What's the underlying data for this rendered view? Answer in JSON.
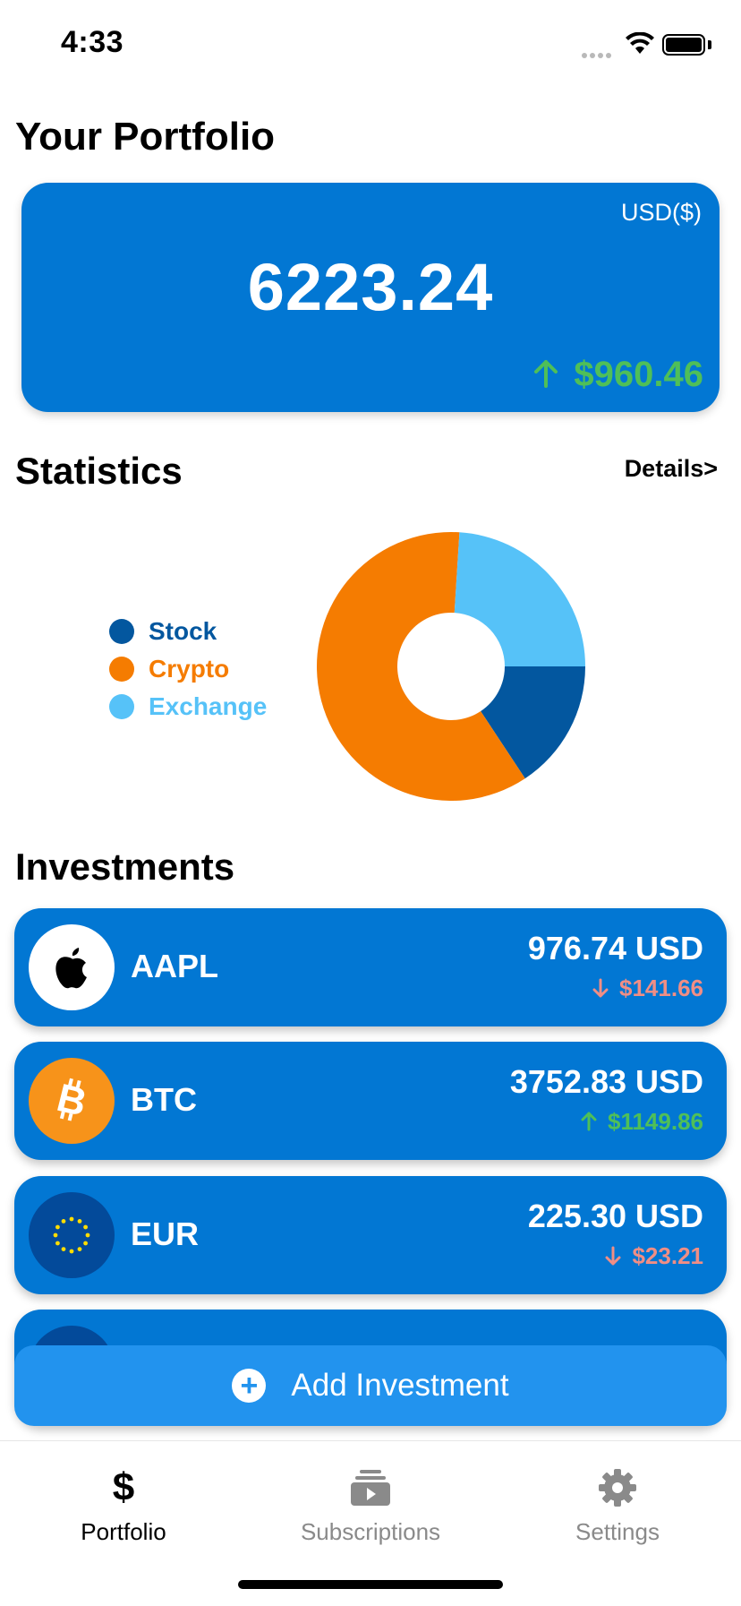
{
  "status": {
    "time": "4:33"
  },
  "page": {
    "title": "Your Portfolio"
  },
  "portfolio": {
    "currency": "USD($)",
    "total": "6223.24",
    "change": "$960.46",
    "change_direction": "up"
  },
  "statistics": {
    "title": "Statistics",
    "details_label": "Details>",
    "chart_data": {
      "type": "pie",
      "categories": [
        "Stock",
        "Crypto",
        "Exchange"
      ],
      "values": [
        15.7,
        60.3,
        24.0
      ],
      "colors": [
        "#03579f",
        "#f57c01",
        "#56c2f8"
      ],
      "legend": "left"
    }
  },
  "investments": {
    "title": "Investments",
    "items": [
      {
        "symbol": "AAPL",
        "value": "976.74 USD",
        "change": "$141.66",
        "direction": "down",
        "icon": "apple-icon"
      },
      {
        "symbol": "BTC",
        "value": "3752.83 USD",
        "change": "$1149.86",
        "direction": "up",
        "icon": "bitcoin-icon"
      },
      {
        "symbol": "EUR",
        "value": "225.30 USD",
        "change": "$23.21",
        "direction": "down",
        "icon": "eu-flag-icon"
      }
    ]
  },
  "add_button": {
    "label": "Add Investment"
  },
  "tabs": [
    {
      "label": "Portfolio",
      "icon": "dollar-icon",
      "active": true
    },
    {
      "label": "Subscriptions",
      "icon": "subscriptions-icon",
      "active": false
    },
    {
      "label": "Settings",
      "icon": "gear-icon",
      "active": false
    }
  ],
  "colors": {
    "card": "#0277d3",
    "accent_button": "#2293ee",
    "up": "#4fbf58",
    "down": "#f08e85"
  }
}
